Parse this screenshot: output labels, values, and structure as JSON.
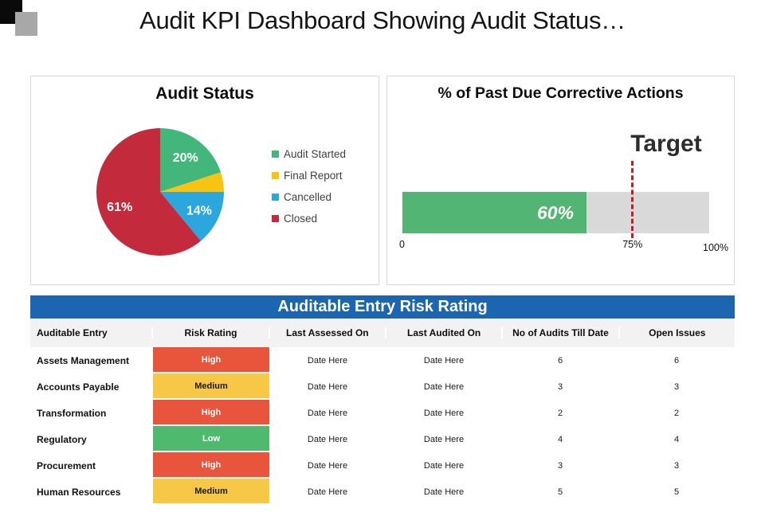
{
  "slide": {
    "title": "Audit KPI Dashboard Showing Audit Status…",
    "decor_colors": {
      "black_square": "#0a0a0a",
      "gray_square": "#a8a8a8"
    }
  },
  "chart_data": [
    {
      "type": "pie",
      "title": "Audit Status",
      "series": [
        {
          "label": "Audit Started",
          "value": 20,
          "display": "20%",
          "color": "#43b67c"
        },
        {
          "label": "Final Report",
          "value": 5,
          "display": "",
          "color": "#f9c312"
        },
        {
          "label": "Cancelled",
          "value": 14,
          "display": "14%",
          "color": "#2ba7de"
        },
        {
          "label": "Closed",
          "value": 61,
          "display": "61%",
          "color": "#c32a3b"
        }
      ],
      "legend_position": "right",
      "start_angle_deg": 0,
      "direction": "clockwise"
    },
    {
      "type": "bar",
      "title": "% of Past Due Corrective Actions",
      "value": 60,
      "value_label": "60%",
      "target": 75,
      "target_label": "75%",
      "annotation": "Target",
      "x_min_label": "0",
      "x_max_label": "100%",
      "xlim": [
        0,
        100
      ],
      "bar_color": "#52b573",
      "track_color": "#d9d9d9",
      "target_line_color": "#be1f2e"
    }
  ],
  "risk_table": {
    "title": "Auditable Entry Risk Rating",
    "title_bg": "#1b65b1",
    "header_bg": "#f2f2f2",
    "columns": [
      "Auditable Entry",
      "Risk Rating",
      "Last Assessed On",
      "Last Audited On",
      "No of Audits Till Date",
      "Open Issues"
    ],
    "rows": [
      [
        "Assets Management",
        "High",
        "Date Here",
        "Date Here",
        "6",
        "6"
      ],
      [
        "Accounts Payable",
        "Medium",
        "Date Here",
        "Date Here",
        "3",
        "3"
      ],
      [
        "Transformation",
        "High",
        "Date Here",
        "Date Here",
        "2",
        "2"
      ],
      [
        "Regulatory",
        "Low",
        "Date Here",
        "Date Here",
        "4",
        "4"
      ],
      [
        "Procurement",
        "High",
        "Date Here",
        "Date Here",
        "3",
        "3"
      ],
      [
        "Human Resources",
        "Medium",
        "Date Here",
        "Date Here",
        "5",
        "5"
      ]
    ],
    "risk_colors": {
      "High": {
        "bg": "#e8543c",
        "text": "#ffffff"
      },
      "Medium": {
        "bg": "#f7c845",
        "text": "#1a1a1a"
      },
      "Low": {
        "bg": "#4fba6e",
        "text": "#ffffff"
      }
    }
  }
}
